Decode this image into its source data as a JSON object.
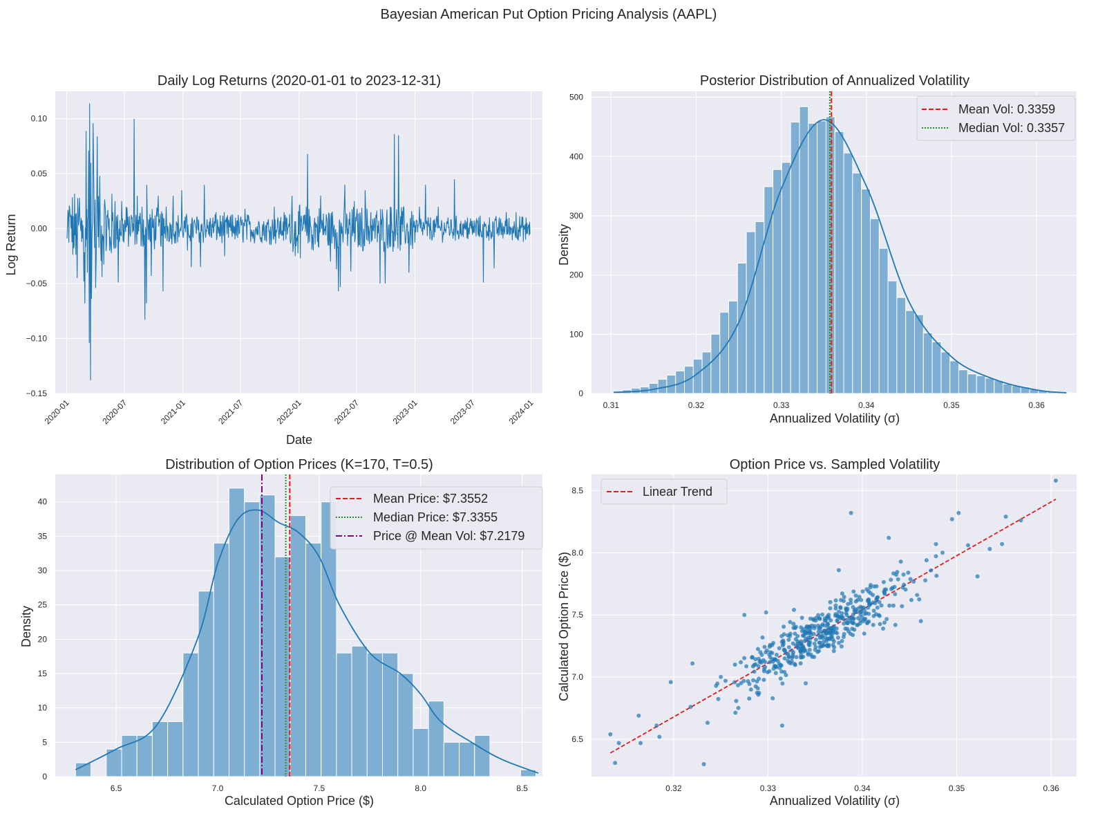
{
  "suptitle": "Bayesian American Put Option Pricing Analysis (AAPL)",
  "colors": {
    "axes_bg": "#EAEAF2",
    "grid": "#FFFFFF",
    "blue": "#1F77B4",
    "hist_fill": "#7FAED3",
    "red": "#E41A1C",
    "green": "#228B22",
    "purple": "#800080"
  },
  "chart_data": [
    {
      "type": "line",
      "title": "Daily Log Returns (2020-01-01 to 2023-12-31)",
      "xlabel": "Date",
      "ylabel": "Log Return",
      "x_range": [
        "2020-01-01",
        "2023-12-31"
      ],
      "x_ticks": [
        "2020-01",
        "2020-07",
        "2021-01",
        "2021-07",
        "2022-01",
        "2022-07",
        "2023-01",
        "2023-07",
        "2024-01"
      ],
      "ylim": [
        -0.15,
        0.125
      ],
      "y_ticks": [
        "0.10",
        "0.05",
        "0.00",
        "−0.05",
        "−0.10",
        "−0.15"
      ],
      "y_tick_values": [
        0.1,
        0.05,
        0.0,
        -0.05,
        -0.1,
        -0.15
      ],
      "grid": true,
      "series": [
        {
          "points": [
            [
              "2020-01-02",
              -0.009
            ],
            [
              "2020-01-09",
              0.021
            ],
            [
              "2020-01-16",
              0.012
            ],
            [
              "2020-01-23",
              -0.018
            ],
            [
              "2020-01-31",
              0.014
            ],
            [
              "2020-02-03",
              -0.045
            ],
            [
              "2020-02-10",
              0.028
            ],
            [
              "2020-02-17",
              -0.012
            ],
            [
              "2020-02-24",
              -0.048
            ],
            [
              "2020-02-27",
              -0.068
            ],
            [
              "2020-03-02",
              0.089
            ],
            [
              "2020-03-06",
              -0.04
            ],
            [
              "2020-03-10",
              0.071
            ],
            [
              "2020-03-12",
              -0.104
            ],
            [
              "2020-03-13",
              0.114
            ],
            [
              "2020-03-16",
              -0.138
            ],
            [
              "2020-03-17",
              0.06
            ],
            [
              "2020-03-19",
              -0.064
            ],
            [
              "2020-03-24",
              0.096
            ],
            [
              "2020-03-26",
              0.05
            ],
            [
              "2020-04-01",
              -0.054
            ],
            [
              "2020-04-06",
              0.084
            ],
            [
              "2020-04-14",
              0.048
            ],
            [
              "2020-04-21",
              -0.044
            ],
            [
              "2020-05-01",
              0.02
            ],
            [
              "2020-05-15",
              -0.02
            ],
            [
              "2020-06-01",
              0.025
            ],
            [
              "2020-06-11",
              -0.049
            ],
            [
              "2020-06-22",
              0.025
            ],
            [
              "2020-07-06",
              0.02
            ],
            [
              "2020-07-31",
              0.1
            ],
            [
              "2020-08-10",
              0.03
            ],
            [
              "2020-08-25",
              0.02
            ],
            [
              "2020-09-03",
              -0.083
            ],
            [
              "2020-09-08",
              -0.068
            ],
            [
              "2020-09-09",
              0.04
            ],
            [
              "2020-09-23",
              -0.043
            ],
            [
              "2020-10-15",
              0.03
            ],
            [
              "2020-10-30",
              -0.057
            ],
            [
              "2020-11-09",
              0.02
            ],
            [
              "2020-12-01",
              0.03
            ],
            [
              "2020-12-28",
              0.035
            ],
            [
              "2021-01-15",
              -0.02
            ],
            [
              "2021-01-27",
              -0.035
            ],
            [
              "2021-02-25",
              -0.035
            ],
            [
              "2021-03-09",
              0.04
            ],
            [
              "2021-04-15",
              0.015
            ],
            [
              "2021-05-12",
              -0.025
            ],
            [
              "2021-06-15",
              0.01
            ],
            [
              "2021-07-15",
              0.018
            ],
            [
              "2021-08-15",
              -0.01
            ],
            [
              "2021-09-15",
              -0.01
            ],
            [
              "2021-10-15",
              0.02
            ],
            [
              "2021-11-15",
              0.015
            ],
            [
              "2021-12-10",
              0.03
            ],
            [
              "2021-12-20",
              -0.025
            ],
            [
              "2022-01-05",
              -0.027
            ],
            [
              "2022-01-28",
              0.068
            ],
            [
              "2022-02-15",
              -0.02
            ],
            [
              "2022-03-10",
              0.03
            ],
            [
              "2022-04-10",
              -0.03
            ],
            [
              "2022-04-29",
              -0.037
            ],
            [
              "2022-05-05",
              -0.057
            ],
            [
              "2022-05-11",
              -0.053
            ],
            [
              "2022-05-25",
              0.04
            ],
            [
              "2022-06-13",
              -0.039
            ],
            [
              "2022-06-24",
              0.025
            ],
            [
              "2022-07-28",
              0.035
            ],
            [
              "2022-08-15",
              0.015
            ],
            [
              "2022-09-13",
              -0.05
            ],
            [
              "2022-09-29",
              -0.05
            ],
            [
              "2022-10-15",
              0.02
            ],
            [
              "2022-10-28",
              0.086
            ],
            [
              "2022-11-10",
              0.085
            ],
            [
              "2022-11-15",
              -0.02
            ],
            [
              "2022-12-13",
              -0.04
            ],
            [
              "2023-01-15",
              0.02
            ],
            [
              "2023-02-03",
              0.04
            ],
            [
              "2023-03-15",
              0.02
            ],
            [
              "2023-04-15",
              0.01
            ],
            [
              "2023-05-05",
              0.045
            ],
            [
              "2023-06-15",
              0.01
            ],
            [
              "2023-07-15",
              0.005
            ],
            [
              "2023-08-04",
              -0.049
            ],
            [
              "2023-09-07",
              -0.036
            ],
            [
              "2023-10-15",
              0.015
            ],
            [
              "2023-11-15",
              0.015
            ],
            [
              "2023-12-15",
              -0.01
            ],
            [
              "2023-12-29",
              -0.005
            ]
          ]
        }
      ]
    },
    {
      "type": "bar",
      "title": "Posterior Distribution of Annualized Volatility",
      "xlabel": "Annualized Volatility (σ)",
      "ylabel": "Density",
      "xlim": [
        0.3077,
        0.3647
      ],
      "ylim": [
        0,
        510
      ],
      "x_ticks": [
        "0.31",
        "0.32",
        "0.33",
        "0.34",
        "0.35",
        "0.36"
      ],
      "x_tick_values": [
        0.31,
        0.32,
        0.33,
        0.34,
        0.35,
        0.36
      ],
      "y_ticks": [
        "0",
        "100",
        "200",
        "300",
        "400",
        "500"
      ],
      "y_tick_values": [
        0,
        100,
        200,
        300,
        400,
        500
      ],
      "grid": true,
      "hist_start": 0.3103,
      "bin_width": 0.00104,
      "values": [
        3,
        6,
        9,
        11,
        17,
        24,
        31,
        38,
        46,
        58,
        70,
        100,
        137,
        156,
        220,
        273,
        290,
        349,
        378,
        390,
        458,
        484,
        456,
        460,
        467,
        442,
        406,
        372,
        345,
        295,
        245,
        190,
        162,
        140,
        133,
        102,
        87,
        70,
        55,
        40,
        33,
        30,
        26,
        22,
        16,
        13,
        11,
        7,
        5,
        4,
        2,
        1
      ],
      "kde": [
        [
          0.3103,
          2
        ],
        [
          0.315,
          7
        ],
        [
          0.32,
          32
        ],
        [
          0.325,
          120
        ],
        [
          0.33,
          345
        ],
        [
          0.335,
          462
        ],
        [
          0.34,
          350
        ],
        [
          0.345,
          155
        ],
        [
          0.35,
          62
        ],
        [
          0.355,
          24
        ],
        [
          0.36,
          6
        ],
        [
          0.3635,
          1
        ]
      ],
      "vlines": [
        {
          "value": 0.3359,
          "style": "dashed",
          "color": "red"
        },
        {
          "value": 0.3357,
          "style": "dotted",
          "color": "green"
        }
      ],
      "legend": {
        "placement": "top-right",
        "entries": [
          "Mean Vol: 0.3359",
          "Median Vol: 0.3357"
        ]
      }
    },
    {
      "type": "bar",
      "title": "Distribution of Option Prices (K=170, T=0.5)",
      "xlabel": "Calculated Option Price ($)",
      "ylabel": "Density",
      "xlim": [
        6.2,
        8.6
      ],
      "ylim": [
        0,
        44
      ],
      "x_ticks": [
        "6.5",
        "7.0",
        "7.5",
        "8.0",
        "8.5"
      ],
      "x_tick_values": [
        6.5,
        7.0,
        7.5,
        8.0,
        8.5
      ],
      "y_ticks": [
        "0",
        "5",
        "10",
        "15",
        "20",
        "25",
        "30",
        "35",
        "40"
      ],
      "y_tick_values": [
        0,
        5,
        10,
        15,
        20,
        25,
        30,
        35,
        40
      ],
      "grid": true,
      "hist_start": 6.3,
      "bin_width": 0.0756,
      "values": [
        2,
        0,
        4,
        6,
        6,
        8,
        8,
        18,
        27,
        34,
        42,
        40,
        41,
        32,
        38,
        34,
        40,
        18,
        19,
        18,
        18,
        15,
        7,
        11,
        5,
        5,
        6,
        0,
        0,
        1
      ],
      "kde": [
        [
          6.3,
          1
        ],
        [
          6.5,
          4
        ],
        [
          6.7,
          7.5
        ],
        [
          6.9,
          20
        ],
        [
          7.0,
          31
        ],
        [
          7.1,
          37.5
        ],
        [
          7.2,
          38.8
        ],
        [
          7.3,
          37
        ],
        [
          7.4,
          35.5
        ],
        [
          7.5,
          32
        ],
        [
          7.6,
          25
        ],
        [
          7.75,
          18
        ],
        [
          7.9,
          15
        ],
        [
          8.0,
          12
        ],
        [
          8.1,
          8
        ],
        [
          8.25,
          5
        ],
        [
          8.4,
          2.5
        ],
        [
          8.58,
          0.5
        ]
      ],
      "vlines": [
        {
          "value": 7.3552,
          "style": "dashed",
          "color": "red"
        },
        {
          "value": 7.3355,
          "style": "dotted",
          "color": "green"
        },
        {
          "value": 7.2179,
          "style": "dashdot",
          "color": "purple"
        }
      ],
      "legend": {
        "placement": "top-right",
        "entries": [
          "Mean Price: $7.3552",
          "Median Price: $7.3355",
          "Price @ Mean Vol: $7.2179"
        ]
      }
    },
    {
      "type": "scatter",
      "title": "Option Price vs. Sampled Volatility",
      "xlabel": "Annualized Volatility (σ)",
      "ylabel": "Calculated Option Price ($)",
      "xlim": [
        0.3113,
        0.3627
      ],
      "ylim": [
        6.2,
        8.63
      ],
      "x_ticks": [
        "0.32",
        "0.33",
        "0.34",
        "0.35",
        "0.36"
      ],
      "x_tick_values": [
        0.32,
        0.33,
        0.34,
        0.35,
        0.36
      ],
      "y_ticks": [
        "6.5",
        "7.0",
        "7.5",
        "8.0",
        "8.5"
      ],
      "y_tick_values": [
        6.5,
        7.0,
        7.5,
        8.0,
        8.5
      ],
      "grid": true,
      "trend": {
        "x": [
          0.3133,
          0.3605
        ],
        "y": [
          6.39,
          8.43
        ]
      },
      "points": [
        [
          0.3133,
          6.54
        ],
        [
          0.3138,
          6.31
        ],
        [
          0.3142,
          6.47
        ],
        [
          0.3163,
          6.69
        ],
        [
          0.3165,
          6.47
        ],
        [
          0.3182,
          6.61
        ],
        [
          0.3185,
          6.52
        ],
        [
          0.3197,
          6.96
        ],
        [
          0.3218,
          6.76
        ],
        [
          0.322,
          7.11
        ],
        [
          0.3232,
          6.3
        ],
        [
          0.3245,
          6.93
        ],
        [
          0.3255,
          6.97
        ],
        [
          0.3265,
          7.1
        ],
        [
          0.3275,
          7.5
        ],
        [
          0.3282,
          6.9
        ],
        [
          0.3292,
          7.2
        ],
        [
          0.3298,
          7.52
        ],
        [
          0.3305,
          6.83
        ],
        [
          0.3308,
          7.14
        ],
        [
          0.3315,
          6.61
        ],
        [
          0.3322,
          7.3
        ],
        [
          0.3335,
          7.4
        ],
        [
          0.334,
          6.95
        ],
        [
          0.3345,
          7.47
        ],
        [
          0.335,
          7.22
        ],
        [
          0.3362,
          7.29
        ],
        [
          0.3375,
          7.86
        ],
        [
          0.3388,
          8.32
        ],
        [
          0.3395,
          7.62
        ],
        [
          0.3402,
          7.35
        ],
        [
          0.3415,
          7.73
        ],
        [
          0.3422,
          7.39
        ],
        [
          0.3428,
          8.12
        ],
        [
          0.3435,
          7.42
        ],
        [
          0.3442,
          7.57
        ],
        [
          0.3452,
          7.62
        ],
        [
          0.3458,
          7.66
        ],
        [
          0.3462,
          7.45
        ],
        [
          0.3468,
          7.94
        ],
        [
          0.3478,
          8.07
        ],
        [
          0.3485,
          8.0
        ],
        [
          0.3495,
          8.27
        ],
        [
          0.3502,
          8.32
        ],
        [
          0.3512,
          8.06
        ],
        [
          0.3522,
          7.81
        ],
        [
          0.3535,
          8.03
        ],
        [
          0.3548,
          8.07
        ],
        [
          0.3552,
          8.29
        ],
        [
          0.3568,
          8.26
        ],
        [
          0.3605,
          8.58
        ]
      ]
    }
  ]
}
